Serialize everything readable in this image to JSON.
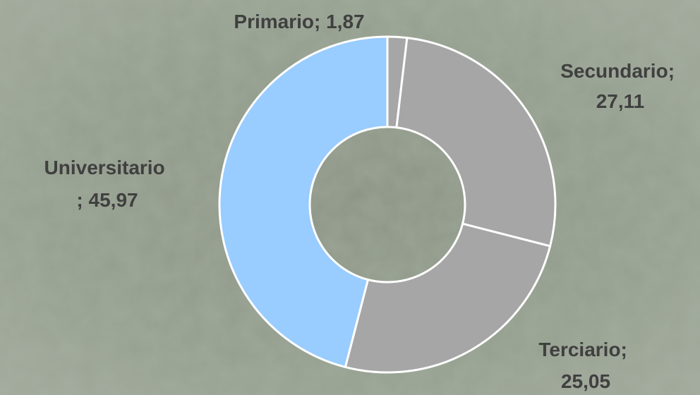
{
  "chart_data": {
    "type": "donut",
    "categories": [
      "Primario",
      "Secundario",
      "Terciario",
      "Universitario"
    ],
    "values": [
      1.87,
      27.11,
      25.05,
      45.97
    ],
    "value_labels": [
      "1,87",
      "27,11",
      "25,05",
      "45,97"
    ],
    "label_separator": "; ",
    "colors": [
      "#a6a6a6",
      "#a6a6a6",
      "#a6a6a6",
      "#99ccff"
    ]
  }
}
